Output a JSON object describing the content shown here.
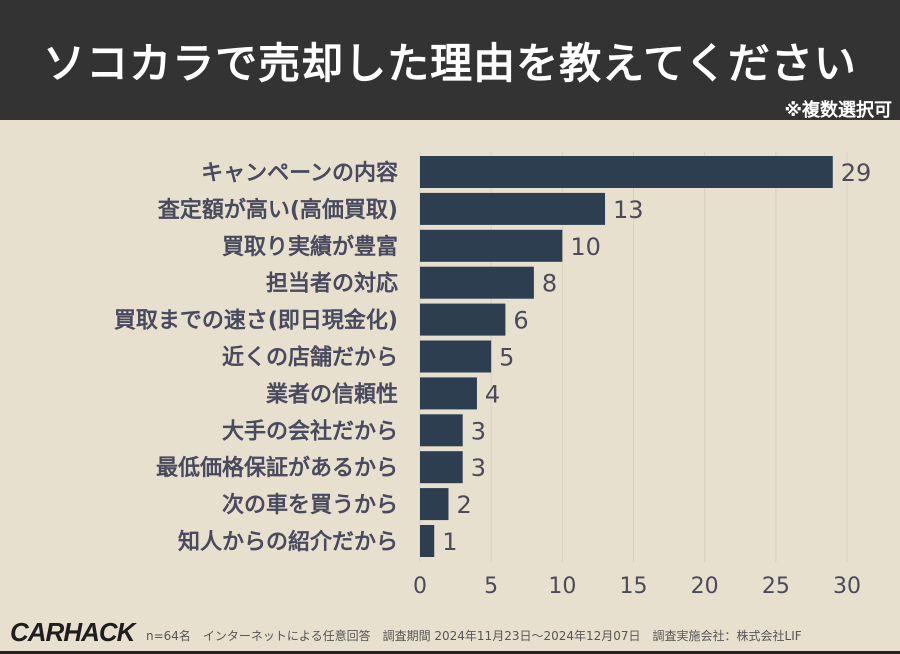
{
  "header": {
    "title": "ソコカラで売却した理由を教えてください",
    "note": "※複数選択可"
  },
  "chart_data": {
    "type": "bar",
    "orientation": "horizontal",
    "categories": [
      "キャンペーンの内容",
      "査定額が高い(高価買取)",
      "買取り実績が豊富",
      "担当者の対応",
      "買取までの速さ(即日現金化)",
      "近くの店舗だから",
      "業者の信頼性",
      "大手の会社だから",
      "最低価格保証があるから",
      "次の車を買うから",
      "知人からの紹介だから"
    ],
    "values": [
      29,
      13,
      10,
      8,
      6,
      5,
      4,
      3,
      3,
      2,
      1
    ],
    "xlim": [
      0,
      30
    ],
    "xticks": [
      0,
      5,
      10,
      15,
      20,
      25,
      30
    ],
    "grid": true,
    "bar_color": "#2c3e50"
  },
  "footer": {
    "logo": "CARHACK",
    "source": "n=64名　インターネットによる任意回答　調査期間 2024年11月23日〜2024年12月07日　調査実施会社：株式会社LIF"
  }
}
